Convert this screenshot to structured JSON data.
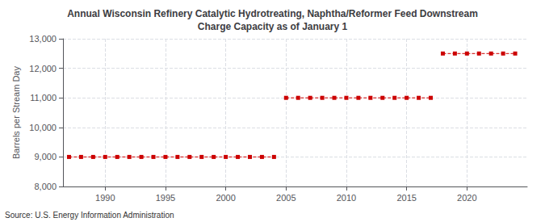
{
  "chart_data": {
    "type": "line",
    "title": "Annual Wisconsin Refinery Catalytic Hydrotreating, Naphtha/Reformer Feed Downstream\nCharge Capacity as of January 1",
    "ylabel": "Barrels per Stream Day",
    "annotation": "Source: U.S. Energy Information Administration",
    "color": "#cc0000",
    "marker": "square",
    "line_style": "dashed",
    "grid": true,
    "x": [
      1987,
      1988,
      1989,
      1990,
      1991,
      1992,
      1993,
      1994,
      1995,
      1996,
      1997,
      1998,
      1999,
      2000,
      2001,
      2002,
      2003,
      2004,
      2005,
      2006,
      2007,
      2008,
      2009,
      2010,
      2011,
      2012,
      2013,
      2014,
      2015,
      2016,
      2017,
      2018,
      2019,
      2020,
      2021,
      2022,
      2023,
      2024
    ],
    "values": [
      9000,
      9000,
      9000,
      9000,
      9000,
      9000,
      9000,
      9000,
      9000,
      9000,
      9000,
      9000,
      9000,
      9000,
      9000,
      9000,
      9000,
      9000,
      11000,
      11000,
      11000,
      11000,
      11000,
      11000,
      11000,
      11000,
      11000,
      11000,
      11000,
      11000,
      11000,
      12500,
      12500,
      12500,
      12500,
      12500,
      12500,
      12500
    ],
    "xlim": [
      1986.5,
      2025
    ],
    "xticks": [
      1990,
      1995,
      2000,
      2005,
      2010,
      2015,
      2020
    ],
    "ylim": [
      8000,
      13000
    ],
    "yticks": [
      {
        "value": 8000,
        "label": "8,000"
      },
      {
        "value": 9000,
        "label": "9,000"
      },
      {
        "value": 10000,
        "label": "10,000"
      },
      {
        "value": 11000,
        "label": "11,000"
      },
      {
        "value": 12000,
        "label": "12,000"
      },
      {
        "value": 13000,
        "label": "13,000"
      }
    ]
  }
}
